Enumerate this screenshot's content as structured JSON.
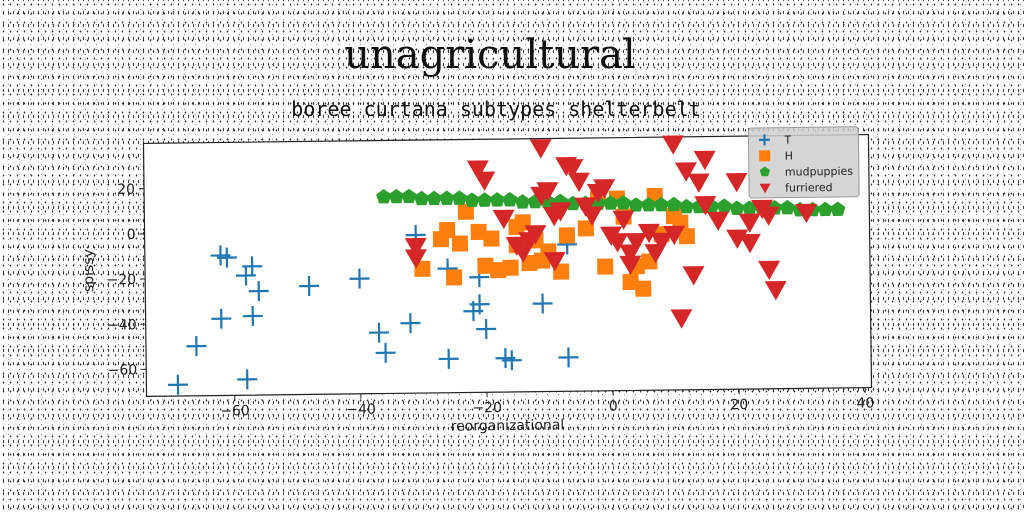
{
  "chart_data": {
    "type": "scatter",
    "title": "unagricultural",
    "subtitle": "boree curtana subtypes shelterbelt",
    "xlabel": "reorganizational",
    "ylabel": "spissy",
    "xlim": [
      -74,
      41
    ],
    "ylim": [
      -72,
      40
    ],
    "xticks": [
      -60,
      -40,
      -20,
      0,
      20,
      40
    ],
    "yticks": [
      20,
      0,
      -20,
      -40,
      -60
    ],
    "grid": false,
    "legend_position": "top-right",
    "series": [
      {
        "name": "T",
        "marker": "plus",
        "color": "#1f77b4",
        "points": [
          [
            -69,
            -67
          ],
          [
            -66,
            -50
          ],
          [
            -62,
            -10
          ],
          [
            -61,
            -11
          ],
          [
            -62,
            -38
          ],
          [
            -58,
            -19
          ],
          [
            -57,
            -15
          ],
          [
            -57,
            -37
          ],
          [
            -56,
            -26
          ],
          [
            -58,
            -65
          ],
          [
            -48,
            -24
          ],
          [
            -40,
            -21
          ],
          [
            -37,
            -45
          ],
          [
            -36,
            -54
          ],
          [
            -32,
            -41
          ],
          [
            -31,
            -2
          ],
          [
            -26,
            -17
          ],
          [
            -26,
            -57
          ],
          [
            -22,
            -36
          ],
          [
            -21,
            -33
          ],
          [
            -21,
            -21
          ],
          [
            -20,
            -44
          ],
          [
            -17,
            -57
          ],
          [
            -16,
            -58
          ],
          [
            -11,
            -33
          ],
          [
            -7,
            -57
          ],
          [
            -7,
            -7
          ]
        ]
      },
      {
        "name": "H",
        "marker": "square",
        "color": "#ff7f0e",
        "points": [
          [
            -30,
            -17
          ],
          [
            -27,
            -4
          ],
          [
            -26,
            0
          ],
          [
            -25,
            -21
          ],
          [
            -24,
            -6
          ],
          [
            -23,
            8
          ],
          [
            -21,
            -1
          ],
          [
            -20,
            -16
          ],
          [
            -19,
            -4
          ],
          [
            -18,
            -18
          ],
          [
            -16,
            -17
          ],
          [
            -15,
            1
          ],
          [
            -15,
            -7
          ],
          [
            -14,
            3
          ],
          [
            -13,
            -15
          ],
          [
            -12,
            -5
          ],
          [
            -11,
            -14
          ],
          [
            -10,
            -10
          ],
          [
            -8,
            -19
          ],
          [
            -7,
            -3
          ],
          [
            -4,
            0
          ],
          [
            -2,
            13
          ],
          [
            -1,
            -17
          ],
          [
            1,
            13
          ],
          [
            2,
            5
          ],
          [
            3,
            -24
          ],
          [
            4,
            -17
          ],
          [
            5,
            -27
          ],
          [
            6,
            -15
          ],
          [
            7,
            14
          ],
          [
            8,
            -3
          ],
          [
            10,
            5
          ],
          [
            11,
            2
          ],
          [
            12,
            -4
          ]
        ]
      },
      {
        "name": "mudpuppies",
        "marker": "pentagon",
        "color": "#2ca02c",
        "points": [
          [
            -36,
            15
          ],
          [
            -34,
            15
          ],
          [
            -32,
            15
          ],
          [
            -30,
            14
          ],
          [
            -28,
            14
          ],
          [
            -26,
            14
          ],
          [
            -24,
            14
          ],
          [
            -22,
            13
          ],
          [
            -20,
            13
          ],
          [
            -18,
            13
          ],
          [
            -16,
            13
          ],
          [
            -14,
            12
          ],
          [
            -12,
            12
          ],
          [
            -10,
            12
          ],
          [
            -8,
            12
          ],
          [
            -6,
            11
          ],
          [
            -4,
            11
          ],
          [
            -2,
            11
          ],
          [
            0,
            11
          ],
          [
            2,
            11
          ],
          [
            4,
            10
          ],
          [
            6,
            10
          ],
          [
            8,
            10
          ],
          [
            10,
            10
          ],
          [
            12,
            9
          ],
          [
            14,
            9
          ],
          [
            16,
            9
          ],
          [
            18,
            9
          ],
          [
            20,
            8
          ],
          [
            22,
            8
          ],
          [
            24,
            8
          ],
          [
            26,
            8
          ],
          [
            28,
            8
          ],
          [
            30,
            7
          ],
          [
            32,
            7
          ],
          [
            34,
            7
          ],
          [
            36,
            7
          ]
        ]
      },
      {
        "name": "furriered",
        "marker": "triangle-down",
        "color": "#d62728",
        "points": [
          [
            -31,
            -7
          ],
          [
            -31,
            -12
          ],
          [
            -21,
            27
          ],
          [
            -20,
            22
          ],
          [
            -17,
            5
          ],
          [
            -15,
            -7
          ],
          [
            -14,
            -10
          ],
          [
            -13,
            -5
          ],
          [
            -12,
            -2
          ],
          [
            -11,
            36
          ],
          [
            -11,
            15
          ],
          [
            -10,
            17
          ],
          [
            -9,
            -14
          ],
          [
            -9,
            6
          ],
          [
            -8,
            8
          ],
          [
            -7,
            28
          ],
          [
            -6,
            27
          ],
          [
            -5,
            21
          ],
          [
            -4,
            10
          ],
          [
            -3,
            6
          ],
          [
            -2,
            16
          ],
          [
            -1,
            18
          ],
          [
            0,
            -3
          ],
          [
            1,
            -6
          ],
          [
            2,
            4
          ],
          [
            3,
            -11
          ],
          [
            3,
            -16
          ],
          [
            4,
            -6
          ],
          [
            6,
            -2
          ],
          [
            7,
            -11
          ],
          [
            8,
            -6
          ],
          [
            10,
            -3
          ],
          [
            10,
            37
          ],
          [
            11,
            -40
          ],
          [
            12,
            25
          ],
          [
            13,
            -21
          ],
          [
            14,
            20
          ],
          [
            15,
            10
          ],
          [
            15,
            30
          ],
          [
            17,
            3
          ],
          [
            20,
            20
          ],
          [
            20,
            -5
          ],
          [
            22,
            2
          ],
          [
            22,
            -7
          ],
          [
            24,
            8
          ],
          [
            25,
            5
          ],
          [
            25,
            -19
          ],
          [
            26,
            -28
          ],
          [
            31,
            6
          ]
        ]
      }
    ]
  }
}
